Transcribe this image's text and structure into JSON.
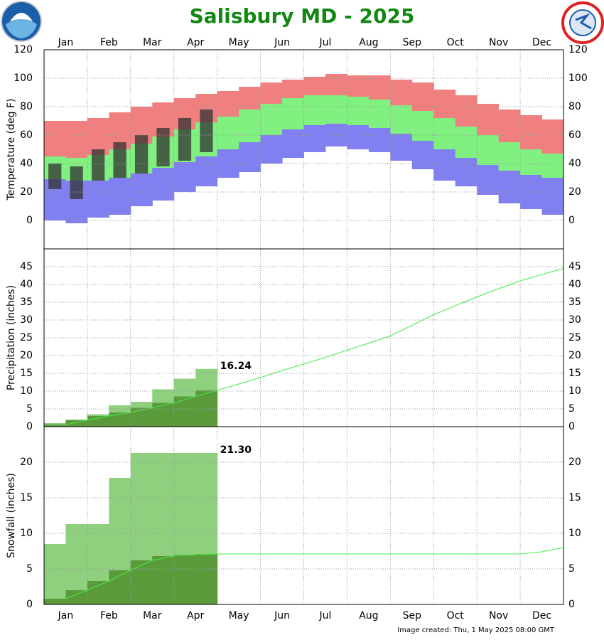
{
  "title": "Salisbury MD - 2025",
  "footer": "Image created: Thu, 1 May 2025 08:00 GMT",
  "months": [
    "Jan",
    "Feb",
    "Mar",
    "Apr",
    "May",
    "Jun",
    "Jul",
    "Aug",
    "Sep",
    "Oct",
    "Nov",
    "Dec"
  ],
  "chart_data": [
    {
      "type": "range",
      "ylabel": "Temperature (deg F)",
      "ylim": [
        -20,
        120
      ],
      "yticks": [
        0,
        20,
        40,
        60,
        80,
        100,
        120
      ],
      "grid": true,
      "colors": {
        "record_high": "#f08080",
        "normal": "#80f080",
        "record_low": "#8080f0",
        "observed": "#333333"
      },
      "record_high": [
        70,
        70,
        72,
        76,
        80,
        83,
        86,
        89,
        91,
        94,
        97,
        99,
        101,
        103,
        102,
        102,
        99,
        97,
        92,
        88,
        82,
        78,
        74,
        71
      ],
      "normal_high": [
        45,
        44,
        46,
        50,
        54,
        59,
        64,
        69,
        73,
        78,
        82,
        86,
        88,
        88,
        87,
        85,
        81,
        77,
        72,
        66,
        60,
        55,
        50,
        47
      ],
      "normal_low": [
        29,
        28,
        28,
        30,
        33,
        37,
        41,
        45,
        50,
        55,
        60,
        64,
        67,
        68,
        67,
        65,
        61,
        56,
        50,
        44,
        39,
        35,
        32,
        30
      ],
      "record_low": [
        0,
        -2,
        2,
        4,
        10,
        14,
        20,
        24,
        30,
        34,
        40,
        44,
        48,
        52,
        50,
        48,
        42,
        36,
        28,
        24,
        18,
        12,
        8,
        4
      ],
      "observed_high": [
        40,
        38,
        50,
        55,
        60,
        65,
        72,
        78
      ],
      "observed_low": [
        22,
        15,
        28,
        30,
        33,
        38,
        42,
        48
      ]
    },
    {
      "type": "cumulative",
      "ylabel": "Precipitation (inches)",
      "ylim": [
        0,
        50
      ],
      "yticks": [
        0,
        5,
        10,
        15,
        20,
        25,
        30,
        35,
        40,
        45
      ],
      "grid": true,
      "colors": {
        "normal_line": "#44ee44",
        "normal_fill": "#5a9a3a",
        "observed": "#8fd07f"
      },
      "normal": [
        0.6,
        1.8,
        3.0,
        4.0,
        5.3,
        6.7,
        8.5,
        10.2,
        12.0,
        13.8,
        15.8,
        17.6,
        19.5,
        21.5,
        23.5,
        25.5,
        28.5,
        31.5,
        34,
        36.5,
        38.8,
        41,
        42.8,
        44.5
      ],
      "observed": [
        1,
        2,
        3.5,
        6,
        7,
        10.5,
        13.5,
        16.24
      ],
      "value_labels": [
        null,
        null,
        null,
        null,
        null,
        null,
        null,
        "16.24"
      ]
    },
    {
      "type": "cumulative",
      "ylabel": "Snowfall (inches)",
      "ylim": [
        0,
        25
      ],
      "yticks": [
        0,
        5,
        10,
        15,
        20
      ],
      "grid": true,
      "colors": {
        "normal_line": "#44ee44",
        "normal_fill": "#5a9a3a",
        "observed": "#8fd07f"
      },
      "normal": [
        0.8,
        2.0,
        3.3,
        4.8,
        6.2,
        6.8,
        7.0,
        7.1,
        7.1,
        7.1,
        7.1,
        7.1,
        7.1,
        7.1,
        7.1,
        7.1,
        7.1,
        7.1,
        7.1,
        7.1,
        7.1,
        7.1,
        7.4,
        8.0
      ],
      "observed": [
        8.5,
        11.3,
        11.3,
        17.8,
        21.3,
        21.3,
        21.3,
        21.3
      ],
      "value_labels": [
        null,
        null,
        null,
        null,
        null,
        null,
        null,
        "21.30"
      ]
    }
  ]
}
